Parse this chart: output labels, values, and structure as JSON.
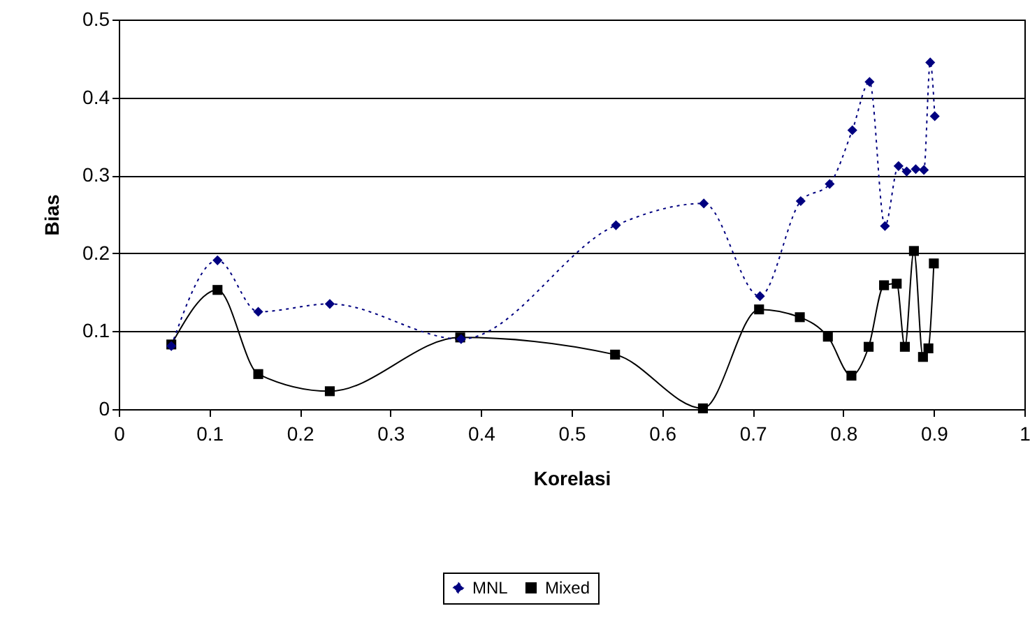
{
  "chart_data": {
    "type": "line",
    "xlabel": "Korelasi",
    "ylabel": "Bias",
    "xlim": [
      0,
      1
    ],
    "xticks": [
      0,
      0.1,
      0.2,
      0.3,
      0.4,
      0.5,
      0.6,
      0.7,
      0.8,
      0.9,
      1
    ],
    "ylim": [
      0,
      0.5
    ],
    "yticks": [
      0,
      0.1,
      0.2,
      0.3,
      0.4,
      0.5
    ],
    "grid": "y",
    "legend": "bottom",
    "series": [
      {
        "name": "MNL",
        "color": "#000080",
        "marker": "diamond",
        "line_style": "dotted",
        "x": [
          0.058,
          0.109,
          0.154,
          0.233,
          0.378,
          0.549,
          0.646,
          0.708,
          0.753,
          0.785,
          0.81,
          0.829,
          0.846,
          0.861,
          0.87,
          0.88,
          0.889,
          0.896,
          0.901
        ],
        "values": [
          0.081,
          0.191,
          0.125,
          0.135,
          0.09,
          0.236,
          0.264,
          0.145,
          0.267,
          0.289,
          0.358,
          0.42,
          0.235,
          0.312,
          0.305,
          0.308,
          0.307,
          0.445,
          0.376
        ]
      },
      {
        "name": "Mixed",
        "color": "#000000",
        "marker": "square",
        "line_style": "solid",
        "x": [
          0.058,
          0.109,
          0.154,
          0.233,
          0.377,
          0.548,
          0.645,
          0.707,
          0.752,
          0.783,
          0.809,
          0.828,
          0.845,
          0.859,
          0.868,
          0.878,
          0.888,
          0.894,
          0.9
        ],
        "values": [
          0.083,
          0.153,
          0.045,
          0.023,
          0.092,
          0.07,
          0.001,
          0.128,
          0.118,
          0.093,
          0.043,
          0.08,
          0.159,
          0.161,
          0.08,
          0.203,
          0.067,
          0.078,
          0.187
        ]
      }
    ]
  }
}
